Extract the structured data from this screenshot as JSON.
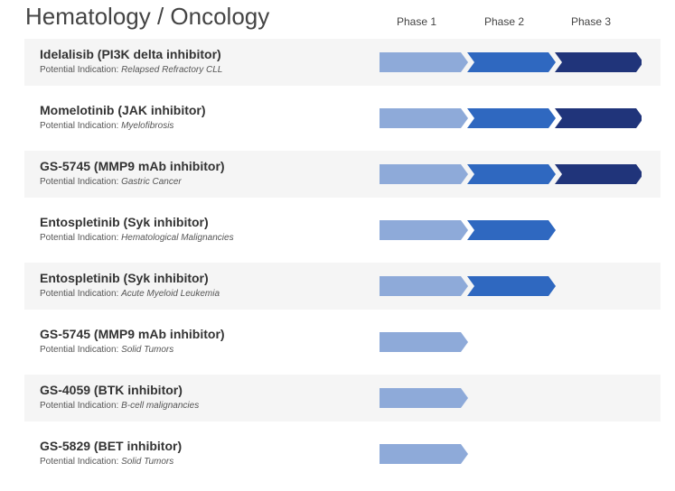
{
  "page": {
    "title": "Hematology / Oncology"
  },
  "phase_headers": [
    "Phase 1",
    "Phase 2",
    "Phase 3"
  ],
  "colors": {
    "phase1": "#8eaad9",
    "phase2": "#2f68c0",
    "phase3": "#20347a",
    "row_shade": "#f5f5f5"
  },
  "indication_label": "Potential Indication:",
  "programs": [
    {
      "name": "Idelalisib (PI3K delta inhibitor)",
      "indication": "Relapsed Refractory CLL",
      "phases_completed": 3
    },
    {
      "name": "Momelotinib (JAK inhibitor)",
      "indication": "Myelofibrosis",
      "phases_completed": 3
    },
    {
      "name": "GS-5745 (MMP9 mAb inhibitor)",
      "indication": "Gastric Cancer",
      "phases_completed": 3
    },
    {
      "name": "Entospletinib (Syk inhibitor)",
      "indication": "Hematological Malignancies",
      "phases_completed": 2
    },
    {
      "name": "Entospletinib (Syk inhibitor)",
      "indication": "Acute Myeloid Leukemia",
      "phases_completed": 2
    },
    {
      "name": "GS-5745 (MMP9 mAb inhibitor)",
      "indication": "Solid Tumors",
      "phases_completed": 1
    },
    {
      "name": "GS-4059 (BTK inhibitor)",
      "indication": "B-cell malignancies",
      "phases_completed": 1
    },
    {
      "name": "GS-5829 (BET inhibitor)",
      "indication": "Solid Tumors",
      "phases_completed": 1
    }
  ]
}
